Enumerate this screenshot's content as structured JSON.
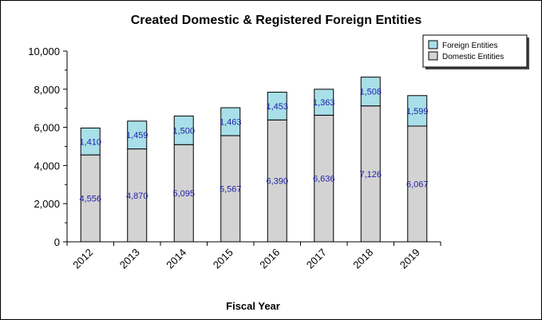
{
  "chart_data": {
    "type": "bar",
    "stacked": true,
    "title": "Created Domestic & Registered Foreign Entities",
    "xlabel": "Fiscal Year",
    "ylabel": "",
    "categories": [
      "2012",
      "2013",
      "2014",
      "2015",
      "2016",
      "2017",
      "2018",
      "2019"
    ],
    "series": [
      {
        "name": "Domestic Entities",
        "values": [
          4556,
          4870,
          5095,
          5567,
          6390,
          6636,
          7126,
          6067
        ],
        "color": "#d3d3d3",
        "labels": [
          "4,556",
          "4,870",
          "5,095",
          "5,567",
          "6,390",
          "6,636",
          "7,126",
          "6,067"
        ]
      },
      {
        "name": "Foreign Entities",
        "values": [
          1410,
          1459,
          1500,
          1463,
          1453,
          1363,
          1508,
          1599
        ],
        "color": "#a8dfe8",
        "labels": [
          "1,410",
          "1,459",
          "1,500",
          "1,463",
          "1,453",
          "1,363",
          "1,508",
          "1,599"
        ]
      }
    ],
    "ylim": [
      0,
      10000
    ],
    "yticks": [
      0,
      2000,
      4000,
      6000,
      8000,
      10000
    ],
    "ytick_labels": [
      "0",
      "2,000",
      "4,000",
      "6,000",
      "8,000",
      "10,000"
    ],
    "legend": {
      "position": "top-right",
      "entries": [
        {
          "label": "Foreign Entities",
          "color": "#a8dfe8"
        },
        {
          "label": "Domestic Entities",
          "color": "#d3d3d3"
        }
      ]
    },
    "grid": false
  }
}
